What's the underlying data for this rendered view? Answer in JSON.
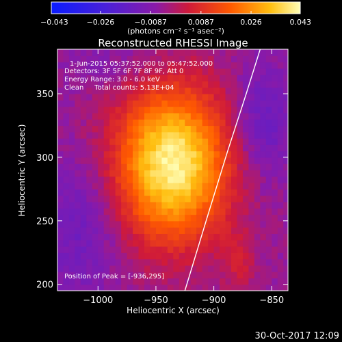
{
  "chart_data": {
    "type": "heatmap",
    "title": "Reconstructed RHESSI Image",
    "xlabel": "Heliocentric X (arcsec)",
    "ylabel": "Heliocentric Y (arcsec)",
    "xlim": [
      -1035,
      -836
    ],
    "ylim": [
      195,
      385
    ],
    "xticks": [
      -1000,
      -950,
      -900,
      -850
    ],
    "yticks": [
      200,
      250,
      300,
      350
    ],
    "xtick_labels": [
      "−1000",
      "−950",
      "−900",
      "−850"
    ],
    "ytick_labels": [
      "200",
      "250",
      "300",
      "350"
    ],
    "colorbar": {
      "range": [
        -0.043,
        0.043
      ],
      "ticks": [
        -0.043,
        -0.026,
        -0.0087,
        0.0087,
        0.026,
        0.043
      ],
      "tick_labels": [
        "−0.043",
        "−0.026",
        "−0.0087",
        "0.0087",
        "0.026",
        "0.043"
      ],
      "unit_label": "(photons cm⁻² s⁻¹ asec⁻²)"
    },
    "annotations": [
      "1-Jun-2015 05:37:52.000 to 05:47:52.000",
      "Detectors: 3F 5F 6F 7F 8F 9F, Att 0",
      "Energy Range: 3.0 - 6.0 keV",
      "Clean     Total counts: 5.13E+04"
    ],
    "peak": {
      "label": "Position of Peak = [-936,295]",
      "x": -936,
      "y": 295,
      "value": 0.043
    },
    "limb": [
      [
        -925,
        195
      ],
      [
        -905,
        255
      ],
      [
        -888,
        305
      ],
      [
        -872,
        350
      ],
      [
        -860,
        385
      ]
    ],
    "footer": "30-Oct-2017 12:09"
  }
}
